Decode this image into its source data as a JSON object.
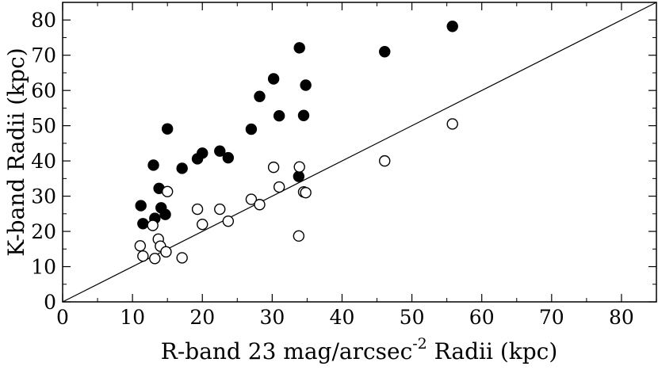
{
  "chart_data": {
    "type": "scatter",
    "title": "",
    "xlabel_parts": {
      "before": "R-band 23 mag/arcsec",
      "superscript": "-2",
      "after": " Radii (kpc)"
    },
    "ylabel": "K-band Radii (kpc)",
    "xlim": [
      0,
      85
    ],
    "ylim": [
      0,
      85
    ],
    "x_ticks": [
      0,
      10,
      20,
      30,
      40,
      50,
      60,
      70,
      80
    ],
    "y_ticks": [
      0,
      10,
      20,
      30,
      40,
      50,
      60,
      70,
      80
    ],
    "grid": false,
    "legend": "none",
    "reference_line": {
      "type": "y=x",
      "from": [
        0,
        0
      ],
      "to": [
        85,
        85
      ]
    },
    "series": [
      {
        "marker": "filled-circle",
        "color": "#000000",
        "points": [
          [
            11.2,
            27.3
          ],
          [
            11.5,
            22.2
          ],
          [
            13.0,
            38.8
          ],
          [
            13.2,
            23.7
          ],
          [
            13.8,
            32.2
          ],
          [
            14.1,
            26.7
          ],
          [
            14.7,
            24.8
          ],
          [
            15.0,
            49.1
          ],
          [
            17.1,
            37.9
          ],
          [
            19.3,
            40.6
          ],
          [
            20.0,
            42.2
          ],
          [
            22.5,
            42.8
          ],
          [
            23.7,
            40.9
          ],
          [
            27.0,
            49.0
          ],
          [
            28.2,
            58.3
          ],
          [
            30.2,
            63.3
          ],
          [
            31.0,
            52.8
          ],
          [
            33.8,
            35.6
          ],
          [
            33.9,
            72.1
          ],
          [
            34.5,
            52.9
          ],
          [
            34.8,
            61.5
          ],
          [
            46.1,
            71.0
          ],
          [
            55.8,
            78.2
          ]
        ]
      },
      {
        "marker": "open-circle",
        "color": "#000000",
        "points": [
          [
            11.1,
            15.9
          ],
          [
            11.5,
            13.0
          ],
          [
            12.9,
            21.7
          ],
          [
            13.2,
            12.3
          ],
          [
            13.7,
            17.8
          ],
          [
            14.0,
            15.8
          ],
          [
            14.8,
            14.2
          ],
          [
            15.0,
            31.3
          ],
          [
            17.1,
            12.5
          ],
          [
            19.3,
            26.3
          ],
          [
            20.0,
            22.0
          ],
          [
            22.5,
            26.3
          ],
          [
            23.7,
            22.9
          ],
          [
            27.0,
            29.1
          ],
          [
            28.2,
            27.6
          ],
          [
            30.2,
            38.2
          ],
          [
            31.0,
            32.6
          ],
          [
            33.8,
            18.7
          ],
          [
            33.9,
            38.3
          ],
          [
            34.5,
            31.2
          ],
          [
            34.8,
            31.0
          ],
          [
            46.1,
            40.0
          ],
          [
            55.8,
            50.5
          ]
        ]
      }
    ]
  }
}
